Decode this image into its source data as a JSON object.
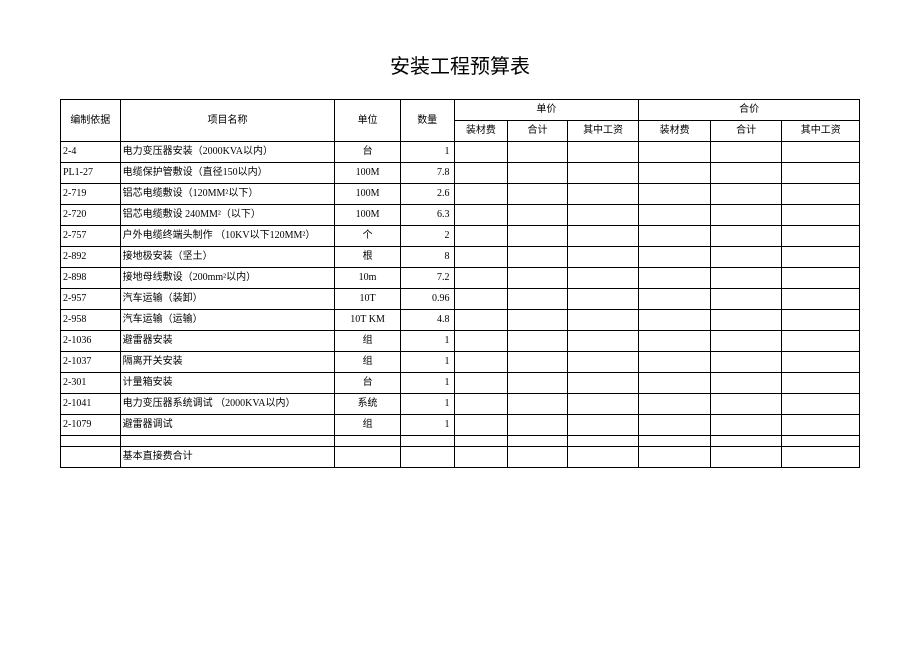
{
  "title": "安装工程预算表",
  "header": {
    "code": "编制依据",
    "name": "项目名称",
    "unit": "单位",
    "qty": "数量",
    "unit_price_group": "单价",
    "total_price_group": "合价",
    "mat_fee": "装材费",
    "sum": "合计",
    "wage": "其中工资",
    "mat_fee2": "装材费",
    "sum2": "合计",
    "wage2": "其中工资"
  },
  "rows": [
    {
      "code": "2-4",
      "name": "电力变压器安装（2000KVA以内）",
      "unit": "台",
      "qty": "1"
    },
    {
      "code": "PL1-27",
      "name": "电缆保护管敷设（直径150以内）",
      "unit": "100M",
      "qty": "7.8"
    },
    {
      "code": "2-719",
      "name": "铝芯电缆敷设（120MM²以下）",
      "unit": "100M",
      "qty": "2.6"
    },
    {
      "code": "2-720",
      "name": "铝芯电缆敷设 240MM²（以下）",
      "unit": "100M",
      "qty": "6.3"
    },
    {
      "code": "2-757",
      "name": "户外电缆终端头制作 （10KV以下120MM²）",
      "unit": "个",
      "qty": "2"
    },
    {
      "code": "2-892",
      "name": "接地极安装（坚土）",
      "unit": "根",
      "qty": "8"
    },
    {
      "code": "2-898",
      "name": "接地母线敷设（200mm²以内）",
      "unit": "10m",
      "qty": "7.2"
    },
    {
      "code": "2-957",
      "name": "汽车运输（装卸）",
      "unit": "10T",
      "qty": "0.96"
    },
    {
      "code": "2-958",
      "name": "汽车运输（运输）",
      "unit": "10T KM",
      "qty": "4.8"
    },
    {
      "code": "2-1036",
      "name": "避雷器安装",
      "unit": "组",
      "qty": "1"
    },
    {
      "code": "2-1037",
      "name": "隔离开关安装",
      "unit": "组",
      "qty": "1"
    },
    {
      "code": "2-301",
      "name": "计量箱安装",
      "unit": "台",
      "qty": "1"
    },
    {
      "code": "2-1041",
      "name": "电力变压器系统调试 （2000KVA以内）",
      "unit": "系统",
      "qty": "1"
    },
    {
      "code": "2-1079",
      "name": "避雷器调试",
      "unit": "组",
      "qty": "1"
    }
  ],
  "footer": {
    "subtotal_label": "基本直接费合计"
  },
  "style": {
    "background": "#ffffff",
    "border_color": "#000000",
    "title_fontsize": 20,
    "body_fontsize": 10
  }
}
